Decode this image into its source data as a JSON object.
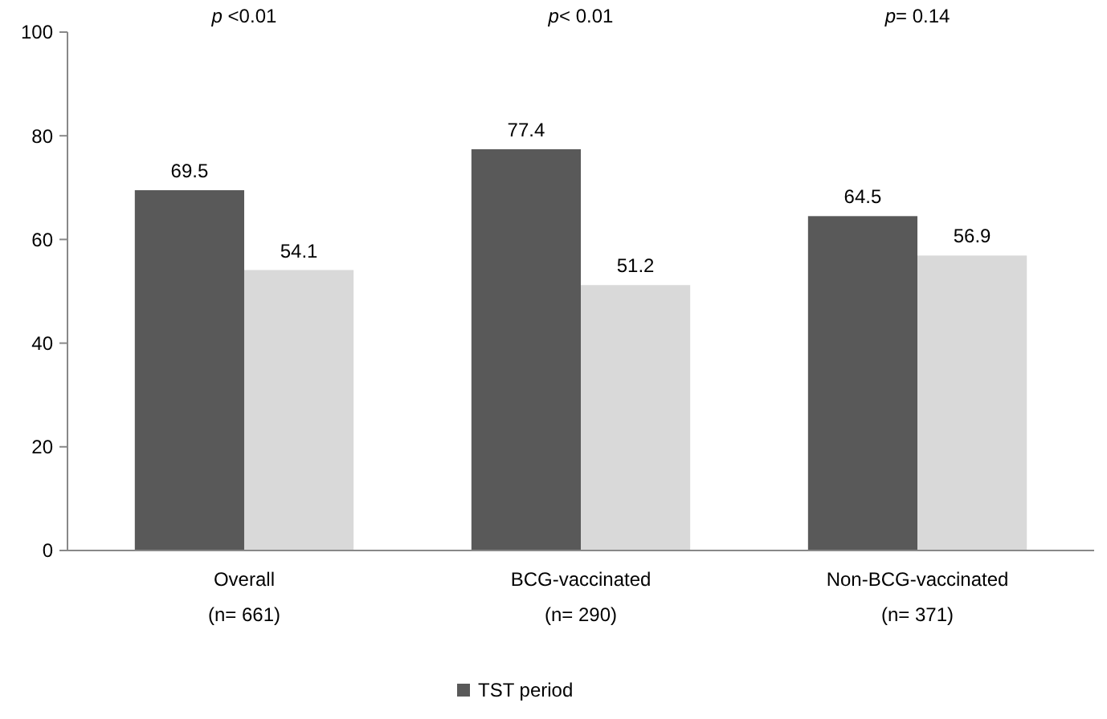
{
  "chart_data": {
    "type": "bar",
    "categories": [
      "Overall\n(n= 661)",
      "BCG-vaccinated\n(n= 290)",
      "Non-BCG-vaccinated\n(n= 371)"
    ],
    "series": [
      {
        "name": "TST period",
        "color": "#595959",
        "values": [
          69.5,
          77.4,
          64.5
        ]
      },
      {
        "color": "#d9d9d9",
        "values": [
          54.1,
          51.2,
          56.9
        ]
      }
    ],
    "ylim": [
      0,
      100
    ],
    "yticks": [
      0,
      20,
      40,
      60,
      80,
      100
    ],
    "data_labels": true,
    "legend": "bottom",
    "grid": false,
    "annotations": [
      "p <0.01",
      "p< 0.01",
      "p= 0.14"
    ]
  }
}
